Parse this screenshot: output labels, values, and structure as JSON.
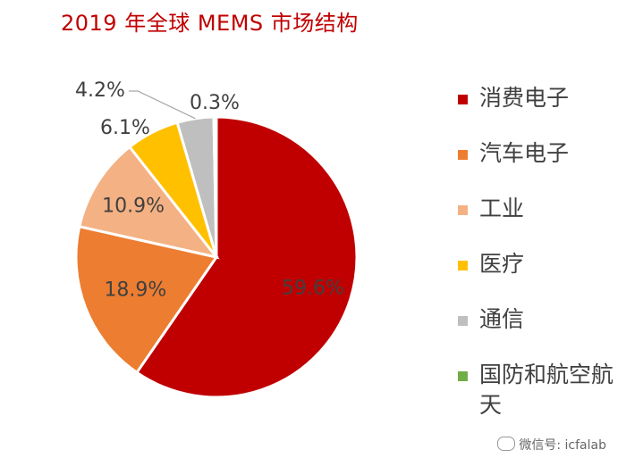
{
  "title": "2019 年全球 MEMS 市场结构",
  "watermark": "微信号: icfalab",
  "chart_data": {
    "type": "pie",
    "title": "2019 年全球 MEMS 市场结构",
    "series": [
      {
        "name": "消费电子",
        "value": 59.6,
        "label": "59.6%",
        "color": "#C00000"
      },
      {
        "name": "汽车电子",
        "value": 18.9,
        "label": "18.9%",
        "color": "#ED7D31"
      },
      {
        "name": "工业",
        "value": 10.9,
        "label": "10.9%",
        "color": "#F4B183"
      },
      {
        "name": "医疗",
        "value": 6.1,
        "label": "6.1%",
        "color": "#FFC000"
      },
      {
        "name": "通信",
        "value": 4.2,
        "label": "4.2%",
        "color": "#BFBFBF"
      },
      {
        "name": "国防和航空航天",
        "value": 0.3,
        "label": "0.3%",
        "color": "#70AD47"
      }
    ],
    "legend_position": "right"
  }
}
